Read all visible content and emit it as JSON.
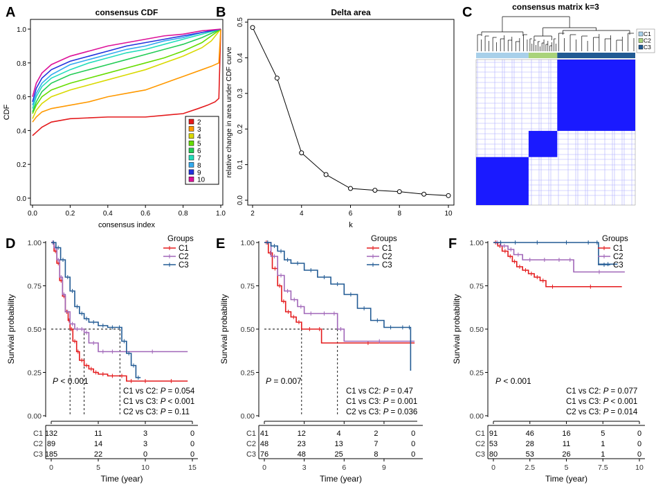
{
  "colors": {
    "red": "#e41a1c",
    "orange": "#ff9900",
    "yellow": "#d9d900",
    "lime": "#66dd00",
    "green": "#22cc55",
    "aqua": "#22ddbb",
    "sky": "#33aaee",
    "blue": "#2233dd",
    "purple": "#8822cc",
    "magenta": "#dd1199",
    "c1": "#e41a1c",
    "c2": "#a066b8",
    "c3": "#215a94",
    "lightblue": "#a8d0ea",
    "lightgreen": "#a9d37a",
    "matrix": "#1a1aff"
  },
  "chart_data": [
    {
      "panel": "A",
      "type": "line",
      "title": "consensus CDF",
      "xlabel": "consensus index",
      "ylabel": "CDF",
      "xlim": [
        0,
        1
      ],
      "ylim": [
        0,
        1
      ],
      "xticks": [
        "0.0",
        "0.2",
        "0.4",
        "0.6",
        "0.8",
        "1.0"
      ],
      "yticks": [
        "0.0",
        "0.2",
        "0.4",
        "0.6",
        "0.8",
        "1.0"
      ],
      "legend": [
        "2",
        "3",
        "4",
        "5",
        "6",
        "7",
        "8",
        "9",
        "10"
      ],
      "series": [
        {
          "name": "2",
          "color": "red",
          "x": [
            0,
            0.02,
            0.05,
            0.1,
            0.2,
            0.3,
            0.4,
            0.5,
            0.6,
            0.7,
            0.8,
            0.88,
            0.93,
            0.97,
            0.99,
            1.0
          ],
          "y": [
            0.37,
            0.39,
            0.42,
            0.45,
            0.47,
            0.475,
            0.48,
            0.48,
            0.48,
            0.49,
            0.5,
            0.53,
            0.55,
            0.57,
            0.59,
            1.0
          ]
        },
        {
          "name": "3",
          "color": "orange",
          "x": [
            0,
            0.02,
            0.05,
            0.1,
            0.2,
            0.3,
            0.4,
            0.5,
            0.6,
            0.7,
            0.8,
            0.9,
            0.95,
            0.99,
            1.0
          ],
          "y": [
            0.45,
            0.48,
            0.51,
            0.53,
            0.55,
            0.57,
            0.6,
            0.62,
            0.64,
            0.68,
            0.72,
            0.76,
            0.78,
            0.8,
            1.0
          ]
        },
        {
          "name": "4",
          "color": "yellow",
          "x": [
            0,
            0.02,
            0.05,
            0.1,
            0.2,
            0.3,
            0.4,
            0.5,
            0.6,
            0.7,
            0.8,
            0.9,
            0.95,
            1.0
          ],
          "y": [
            0.47,
            0.52,
            0.56,
            0.6,
            0.64,
            0.67,
            0.7,
            0.73,
            0.76,
            0.8,
            0.84,
            0.89,
            0.93,
            1.0
          ]
        },
        {
          "name": "5",
          "color": "lime",
          "x": [
            0,
            0.02,
            0.05,
            0.1,
            0.2,
            0.3,
            0.4,
            0.5,
            0.6,
            0.7,
            0.8,
            0.9,
            1.0
          ],
          "y": [
            0.5,
            0.55,
            0.6,
            0.64,
            0.68,
            0.71,
            0.74,
            0.77,
            0.8,
            0.83,
            0.87,
            0.92,
            1.0
          ]
        },
        {
          "name": "6",
          "color": "green",
          "x": [
            0,
            0.02,
            0.05,
            0.1,
            0.2,
            0.3,
            0.4,
            0.5,
            0.6,
            0.7,
            0.8,
            0.9,
            1.0
          ],
          "y": [
            0.51,
            0.57,
            0.63,
            0.68,
            0.73,
            0.76,
            0.79,
            0.82,
            0.85,
            0.88,
            0.91,
            0.95,
            1.0
          ]
        },
        {
          "name": "7",
          "color": "aqua",
          "x": [
            0,
            0.02,
            0.05,
            0.1,
            0.2,
            0.3,
            0.4,
            0.5,
            0.6,
            0.7,
            0.8,
            0.9,
            1.0
          ],
          "y": [
            0.53,
            0.6,
            0.66,
            0.71,
            0.76,
            0.8,
            0.83,
            0.86,
            0.88,
            0.91,
            0.94,
            0.97,
            1.0
          ]
        },
        {
          "name": "8",
          "color": "sky",
          "x": [
            0,
            0.02,
            0.05,
            0.1,
            0.2,
            0.3,
            0.4,
            0.5,
            0.6,
            0.7,
            0.8,
            0.9,
            1.0
          ],
          "y": [
            0.55,
            0.62,
            0.68,
            0.73,
            0.79,
            0.82,
            0.85,
            0.88,
            0.9,
            0.93,
            0.95,
            0.98,
            1.0
          ]
        },
        {
          "name": "9",
          "color": "blue",
          "x": [
            0,
            0.02,
            0.05,
            0.1,
            0.2,
            0.3,
            0.4,
            0.5,
            0.6,
            0.7,
            0.8,
            0.9,
            1.0
          ],
          "y": [
            0.57,
            0.65,
            0.71,
            0.76,
            0.81,
            0.84,
            0.87,
            0.9,
            0.92,
            0.94,
            0.96,
            0.98,
            1.0
          ]
        },
        {
          "name": "10",
          "color": "magenta",
          "x": [
            0,
            0.02,
            0.05,
            0.1,
            0.2,
            0.3,
            0.4,
            0.5,
            0.6,
            0.7,
            0.8,
            0.9,
            1.0
          ],
          "y": [
            0.6,
            0.68,
            0.74,
            0.79,
            0.84,
            0.87,
            0.9,
            0.92,
            0.94,
            0.96,
            0.97,
            0.99,
            1.0
          ]
        }
      ]
    },
    {
      "panel": "B",
      "type": "line",
      "title": "Delta area",
      "xlabel": "k",
      "ylabel": "relative change in area under CDF curve",
      "xlim": [
        2,
        10
      ],
      "ylim": [
        0,
        0.5
      ],
      "xticks": [
        "2",
        "4",
        "6",
        "8",
        "10"
      ],
      "yticks": [
        "0.0",
        "0.1",
        "0.2",
        "0.3",
        "0.4",
        "0.5"
      ],
      "x": [
        2,
        3,
        4,
        5,
        6,
        7,
        8,
        9,
        10
      ],
      "values": [
        0.485,
        0.343,
        0.133,
        0.072,
        0.033,
        0.028,
        0.024,
        0.017,
        0.013
      ]
    },
    {
      "panel": "C",
      "type": "heatmap",
      "title": "consensus matrix k=3",
      "legend": [
        "C1",
        "C2",
        "C3"
      ],
      "clusters": [
        {
          "name": "C1",
          "fraction": 0.33,
          "color": "lightblue"
        },
        {
          "name": "C2",
          "fraction": 0.18,
          "color": "lightgreen"
        },
        {
          "name": "C3",
          "fraction": 0.49,
          "color": "c3"
        }
      ]
    },
    {
      "panel": "D",
      "type": "line",
      "ylabel": "Survival probability",
      "xlabel": "Time (year)",
      "xlim": [
        0,
        15
      ],
      "ylim": [
        0,
        1
      ],
      "xticks": [
        "0",
        "5",
        "10",
        "15"
      ],
      "yticks": [
        "0.00",
        "0.25",
        "0.50",
        "0.75",
        "1.00"
      ],
      "legend_title": "Groups",
      "legend": [
        "C1",
        "C2",
        "C3"
      ],
      "pvalue_prefix": "P",
      "pvalue_text": " < 0.001",
      "comparisons": [
        {
          "label": "C1 vs C2: ",
          "p": "P",
          "value": " = 0.054"
        },
        {
          "label": "C1 vs C3: ",
          "p": "P",
          "value": " < 0.001"
        },
        {
          "label": "C2 vs C3: ",
          "p": "P",
          "value": " = 0.11"
        }
      ],
      "median_lines": [
        2,
        3.5,
        7.3
      ],
      "series": [
        {
          "name": "C1",
          "color": "c1",
          "x": [
            0,
            0.3,
            0.6,
            0.9,
            1.2,
            1.5,
            1.8,
            2.0,
            2.3,
            2.7,
            3.0,
            3.5,
            4.0,
            4.5,
            5.0,
            6.0,
            7.0,
            8.0,
            9.0,
            11.0,
            14.5
          ],
          "y": [
            1.0,
            0.95,
            0.88,
            0.78,
            0.69,
            0.6,
            0.55,
            0.5,
            0.43,
            0.37,
            0.32,
            0.29,
            0.27,
            0.25,
            0.24,
            0.23,
            0.23,
            0.2,
            0.2,
            0.2,
            0.2
          ]
        },
        {
          "name": "C2",
          "color": "c2",
          "x": [
            0,
            0.3,
            0.6,
            0.9,
            1.2,
            1.5,
            2.0,
            2.5,
            3.0,
            3.5,
            4.0,
            5.0,
            6.0,
            7.0,
            14.5
          ],
          "y": [
            1.0,
            0.97,
            0.9,
            0.8,
            0.7,
            0.6,
            0.53,
            0.5,
            0.5,
            0.48,
            0.42,
            0.37,
            0.37,
            0.37,
            0.37
          ]
        },
        {
          "name": "C3",
          "color": "c3",
          "x": [
            0,
            0.5,
            1.0,
            1.5,
            2.0,
            2.5,
            3.0,
            3.5,
            4.0,
            5.0,
            6.0,
            7.0,
            7.5,
            8.0,
            8.5,
            9.0,
            9.5
          ],
          "y": [
            1.0,
            0.97,
            0.9,
            0.8,
            0.72,
            0.63,
            0.59,
            0.56,
            0.54,
            0.52,
            0.51,
            0.51,
            0.43,
            0.36,
            0.29,
            0.22,
            0.22
          ]
        }
      ],
      "risk_table": {
        "rows": [
          "C1",
          "C2",
          "C3"
        ],
        "values": [
          [
            "132",
            "11",
            "3",
            "0"
          ],
          [
            "89",
            "14",
            "3",
            "0"
          ],
          [
            "185",
            "22",
            "0",
            "0"
          ]
        ]
      }
    },
    {
      "panel": "E",
      "type": "line",
      "ylabel": "Survival probability",
      "xlabel": "Time (year)",
      "xlim": [
        0,
        11.5
      ],
      "ylim": [
        0,
        1
      ],
      "xticks": [
        "0",
        "3",
        "6",
        "9"
      ],
      "yticks": [
        "0.00",
        "0.25",
        "0.50",
        "0.75",
        "1.00"
      ],
      "legend_title": "Groups",
      "legend": [
        "C1",
        "C2",
        "C3"
      ],
      "pvalue_prefix": "P",
      "pvalue_text": " = 0.007",
      "comparisons": [
        {
          "label": "C1 vs C2: ",
          "p": "P",
          "value": " = 0.47"
        },
        {
          "label": "C1 vs C3: ",
          "p": "P",
          "value": " = 0.001"
        },
        {
          "label": "C2 vs C3: ",
          "p": "P",
          "value": " = 0.036"
        }
      ],
      "median_lines": [
        2.8,
        5.5
      ],
      "series": [
        {
          "name": "C1",
          "color": "c1",
          "x": [
            0,
            0.3,
            0.6,
            1.0,
            1.3,
            1.6,
            2.0,
            2.4,
            2.8,
            4.0,
            4.3,
            11.3
          ],
          "y": [
            1.0,
            0.94,
            0.85,
            0.75,
            0.66,
            0.6,
            0.57,
            0.54,
            0.5,
            0.5,
            0.42,
            0.42
          ]
        },
        {
          "name": "C2",
          "color": "c2",
          "x": [
            0,
            0.5,
            1.0,
            1.5,
            2.0,
            2.5,
            3.0,
            4.0,
            5.0,
            5.5,
            6.0,
            11.3
          ],
          "y": [
            1.0,
            0.92,
            0.81,
            0.72,
            0.67,
            0.63,
            0.59,
            0.59,
            0.59,
            0.5,
            0.43,
            0.43
          ]
        },
        {
          "name": "C3",
          "color": "c3",
          "x": [
            0,
            0.5,
            1.0,
            1.5,
            2.0,
            3.0,
            4.0,
            5.0,
            6.0,
            7.0,
            8.0,
            9.0,
            10.0,
            10.8,
            11.0
          ],
          "y": [
            1.0,
            0.98,
            0.95,
            0.9,
            0.88,
            0.84,
            0.8,
            0.76,
            0.7,
            0.62,
            0.55,
            0.51,
            0.51,
            0.51,
            0.26
          ]
        }
      ],
      "risk_table": {
        "rows": [
          "C1",
          "C2",
          "C3"
        ],
        "values": [
          [
            "41",
            "12",
            "4",
            "2",
            "0"
          ],
          [
            "48",
            "23",
            "13",
            "7",
            "0"
          ],
          [
            "76",
            "48",
            "25",
            "8",
            "0"
          ]
        ]
      }
    },
    {
      "panel": "F",
      "type": "line",
      "ylabel": "Survival probability",
      "xlabel": "Time (year)",
      "xlim": [
        0,
        10
      ],
      "ylim": [
        0,
        1
      ],
      "xticks": [
        "0",
        "2.5",
        "5",
        "7.5",
        "10"
      ],
      "yticks": [
        "0.00",
        "0.25",
        "0.50",
        "0.75",
        "1.00"
      ],
      "legend_title": "Groups",
      "legend": [
        "C1",
        "C2",
        "C3"
      ],
      "pvalue_prefix": "P",
      "pvalue_text": " < 0.001",
      "comparisons": [
        {
          "label": "C1 vs C2: ",
          "p": "P",
          "value": " = 0.077"
        },
        {
          "label": "C1 vs C3: ",
          "p": "P",
          "value": " < 0.001"
        },
        {
          "label": "C2 vs C3: ",
          "p": "P",
          "value": " = 0.014"
        }
      ],
      "median_lines": [],
      "series": [
        {
          "name": "C1",
          "color": "c1",
          "x": [
            0,
            0.3,
            0.6,
            1.0,
            1.3,
            1.6,
            2.0,
            2.4,
            2.8,
            3.2,
            3.6,
            4.5,
            8.8
          ],
          "y": [
            1.0,
            0.98,
            0.95,
            0.92,
            0.89,
            0.86,
            0.84,
            0.82,
            0.8,
            0.78,
            0.745,
            0.745,
            0.745
          ]
        },
        {
          "name": "C2",
          "color": "c2",
          "x": [
            0,
            0.5,
            1.0,
            1.4,
            2.0,
            3.0,
            4.0,
            5.0,
            5.5,
            9.0
          ],
          "y": [
            1.0,
            0.98,
            0.96,
            0.93,
            0.9,
            0.9,
            0.9,
            0.9,
            0.83,
            0.83
          ]
        },
        {
          "name": "C3",
          "color": "c3",
          "x": [
            0,
            1.0,
            2.0,
            4.0,
            6.0,
            7.0,
            7.2,
            8.5
          ],
          "y": [
            1.0,
            1.0,
            1.0,
            1.0,
            1.0,
            1.0,
            0.875,
            0.875
          ]
        }
      ],
      "risk_table": {
        "rows": [
          "C1",
          "C2",
          "C3"
        ],
        "values": [
          [
            "91",
            "46",
            "16",
            "5",
            "0"
          ],
          [
            "53",
            "28",
            "11",
            "1",
            "0"
          ],
          [
            "80",
            "53",
            "26",
            "1",
            "0"
          ]
        ]
      }
    }
  ],
  "panel_letters": [
    "A",
    "B",
    "C",
    "D",
    "E",
    "F"
  ]
}
